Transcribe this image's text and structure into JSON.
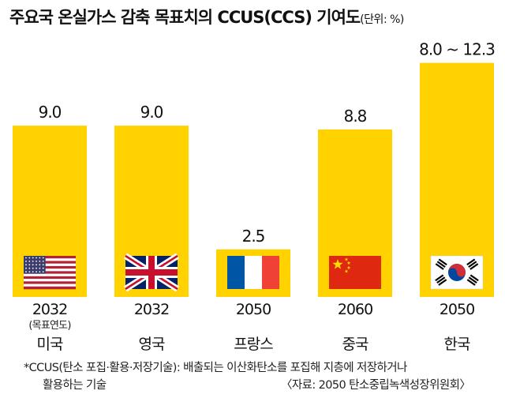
{
  "title": "주요국 온실가스 감축 목표치의 CCUS(CCS) 기여도",
  "unit": "(단위: %)",
  "chart_data": {
    "type": "bar",
    "title": "주요국 온실가스 감축 목표치의 CCUS(CCS) 기여도",
    "unit": "(단위: %)",
    "categories": [
      "미국",
      "영국",
      "프랑스",
      "중국",
      "한국"
    ],
    "years": [
      "2032",
      "2032",
      "2050",
      "2060",
      "2050"
    ],
    "year_caption": "(목표연도)",
    "values": [
      9.0,
      9.0,
      2.5,
      8.8,
      12.3
    ],
    "value_labels": [
      "9.0",
      "9.0",
      "2.5",
      "8.8",
      "8.0 ~ 12.3"
    ],
    "flags": [
      "us-flag",
      "uk-flag",
      "france-flag",
      "china-flag",
      "korea-flag"
    ],
    "ylim": [
      0,
      13.2
    ],
    "grid": false,
    "bar_color": "#FFD200"
  },
  "notes": {
    "line1": "*CCUS(탄소 포집·활용·저장기술): 배출되는 이산화탄소를 포집해 지층에 저장하거나",
    "line2": "활용하는 기술",
    "source": "〈자료: 2050 탄소중립녹색성장위원회〉"
  }
}
